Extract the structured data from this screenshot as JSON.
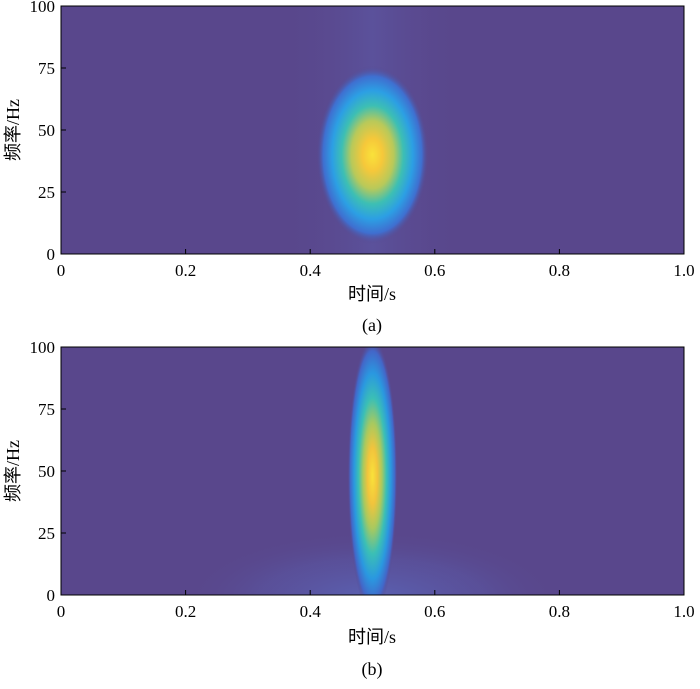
{
  "chart_data": [
    {
      "type": "heatmap",
      "panel_label": "(a)",
      "xlabel": "时间/s",
      "ylabel": "频率/Hz",
      "xlim": [
        0,
        1.0
      ],
      "ylim": [
        0,
        100
      ],
      "xticks": [
        "0",
        "0.2",
        "0.4",
        "0.6",
        "0.8",
        "1.0"
      ],
      "yticks": [
        "0",
        "25",
        "50",
        "75",
        "100"
      ],
      "background_color": "#59478c",
      "colormap": "parula",
      "peak": {
        "time": 0.5,
        "frequency": 40
      },
      "spread": {
        "time": 0.045,
        "frequency": 18
      }
    },
    {
      "type": "heatmap",
      "panel_label": "(b)",
      "xlabel": "时间/s",
      "ylabel": "频率/Hz",
      "xlim": [
        0,
        1.0
      ],
      "ylim": [
        0,
        100
      ],
      "xticks": [
        "0",
        "0.2",
        "0.4",
        "0.6",
        "0.8",
        "1.0"
      ],
      "yticks": [
        "0",
        "25",
        "50",
        "75",
        "100"
      ],
      "background_color": "#59478c",
      "colormap": "parula",
      "peak": {
        "time": 0.5,
        "frequency": 48
      },
      "spread": {
        "time": 0.02,
        "frequency": 28
      }
    }
  ]
}
